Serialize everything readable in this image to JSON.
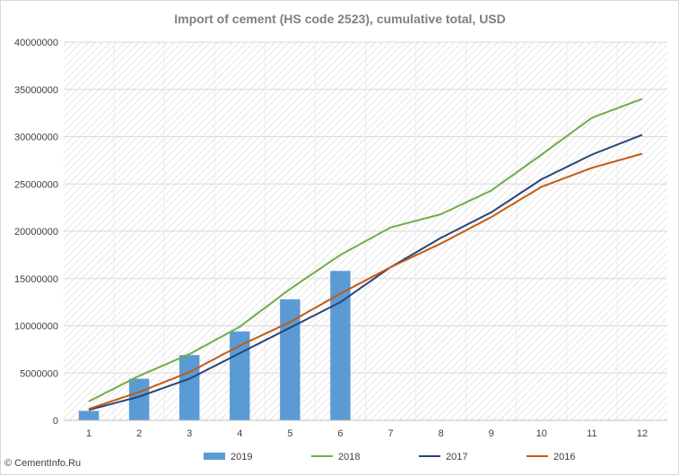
{
  "chart_data": {
    "type": "bar+line",
    "title": "Import of cement (HS code 2523), cumulative total, USD",
    "x": [
      "1",
      "2",
      "3",
      "4",
      "5",
      "6",
      "7",
      "8",
      "9",
      "10",
      "11",
      "12"
    ],
    "ylim": [
      0,
      40000000
    ],
    "yticks": [
      "0",
      "5000000",
      "10000000",
      "15000000",
      "20000000",
      "25000000",
      "30000000",
      "35000000",
      "40000000"
    ],
    "grid": "horizontal, hatched plot area",
    "legend_position": "bottom",
    "series": [
      {
        "name": "2019",
        "kind": "bar",
        "color": "#5b9bd5",
        "values": [
          1000000,
          4400000,
          6900000,
          9400000,
          12800000,
          15800000,
          null,
          null,
          null,
          null,
          null,
          null
        ]
      },
      {
        "name": "2018",
        "kind": "line",
        "color": "#70ad47",
        "values": [
          2000000,
          4700000,
          7000000,
          9900000,
          13900000,
          17500000,
          20400000,
          21800000,
          24300000,
          28100000,
          32000000,
          34000000
        ]
      },
      {
        "name": "2017",
        "kind": "line",
        "color": "#264478",
        "values": [
          1100000,
          2500000,
          4400000,
          7100000,
          9800000,
          12500000,
          16200000,
          19300000,
          22000000,
          25500000,
          28100000,
          30200000
        ]
      },
      {
        "name": "2016",
        "kind": "line",
        "color": "#c55a11",
        "values": [
          1200000,
          3000000,
          5100000,
          7900000,
          10400000,
          13400000,
          16200000,
          18700000,
          21500000,
          24700000,
          26700000,
          28200000
        ]
      }
    ]
  },
  "watermark": "© CementInfo.Ru"
}
